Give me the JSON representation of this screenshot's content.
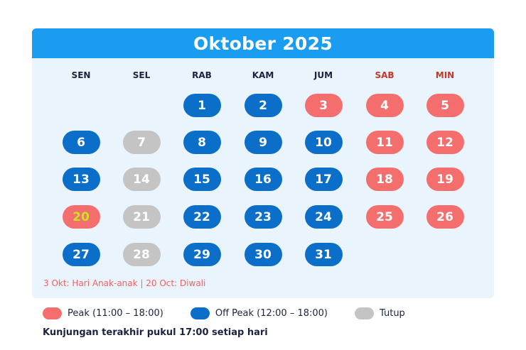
{
  "calendar": {
    "title": "Oktober 2025",
    "weekdays": [
      "SEN",
      "SEL",
      "RAB",
      "KAM",
      "JUM",
      "SAB",
      "MIN"
    ],
    "days": [
      {
        "day": "1",
        "status": "offpeak",
        "col": 2,
        "row": 0
      },
      {
        "day": "2",
        "status": "offpeak",
        "col": 3,
        "row": 0
      },
      {
        "day": "3",
        "status": "peak",
        "col": 4,
        "row": 0
      },
      {
        "day": "4",
        "status": "peak",
        "col": 5,
        "row": 0
      },
      {
        "day": "5",
        "status": "peak",
        "col": 6,
        "row": 0
      },
      {
        "day": "6",
        "status": "offpeak",
        "col": 0,
        "row": 1
      },
      {
        "day": "7",
        "status": "closed",
        "col": 1,
        "row": 1
      },
      {
        "day": "8",
        "status": "offpeak",
        "col": 2,
        "row": 1
      },
      {
        "day": "9",
        "status": "offpeak",
        "col": 3,
        "row": 1
      },
      {
        "day": "10",
        "status": "offpeak",
        "col": 4,
        "row": 1
      },
      {
        "day": "11",
        "status": "peak",
        "col": 5,
        "row": 1
      },
      {
        "day": "12",
        "status": "peak",
        "col": 6,
        "row": 1
      },
      {
        "day": "13",
        "status": "offpeak",
        "col": 0,
        "row": 2
      },
      {
        "day": "14",
        "status": "closed",
        "col": 1,
        "row": 2
      },
      {
        "day": "15",
        "status": "offpeak",
        "col": 2,
        "row": 2
      },
      {
        "day": "16",
        "status": "offpeak",
        "col": 3,
        "row": 2
      },
      {
        "day": "17",
        "status": "offpeak",
        "col": 4,
        "row": 2
      },
      {
        "day": "18",
        "status": "peak",
        "col": 5,
        "row": 2
      },
      {
        "day": "19",
        "status": "peak",
        "col": 6,
        "row": 2
      },
      {
        "day": "20",
        "status": "peak",
        "col": 0,
        "row": 3,
        "highlight": true
      },
      {
        "day": "21",
        "status": "closed",
        "col": 1,
        "row": 3
      },
      {
        "day": "22",
        "status": "offpeak",
        "col": 2,
        "row": 3
      },
      {
        "day": "23",
        "status": "offpeak",
        "col": 3,
        "row": 3
      },
      {
        "day": "24",
        "status": "offpeak",
        "col": 4,
        "row": 3
      },
      {
        "day": "25",
        "status": "peak",
        "col": 5,
        "row": 3
      },
      {
        "day": "26",
        "status": "peak",
        "col": 6,
        "row": 3
      },
      {
        "day": "27",
        "status": "offpeak",
        "col": 0,
        "row": 4
      },
      {
        "day": "28",
        "status": "closed",
        "col": 1,
        "row": 4
      },
      {
        "day": "29",
        "status": "offpeak",
        "col": 2,
        "row": 4
      },
      {
        "day": "30",
        "status": "offpeak",
        "col": 3,
        "row": 4
      },
      {
        "day": "31",
        "status": "offpeak",
        "col": 4,
        "row": 4
      }
    ],
    "notes": "3 Okt: Hari Anak-anak  |  20 Oct: Diwali"
  },
  "legend": {
    "peak": "Peak (11:00 – 18:00)",
    "offpeak": "Off Peak (12:00 – 18:00)",
    "closed": "Tutup"
  },
  "footer_note": "Kunjungan terakhir pukul 17:00 setiap hari",
  "colors": {
    "header": "#1a9cf0",
    "peak": "#f56e6e",
    "offpeak": "#0b6ec9",
    "closed": "#c4c4c4",
    "panel": "#e9f4fc",
    "highlight_text": "#c6e51f"
  }
}
